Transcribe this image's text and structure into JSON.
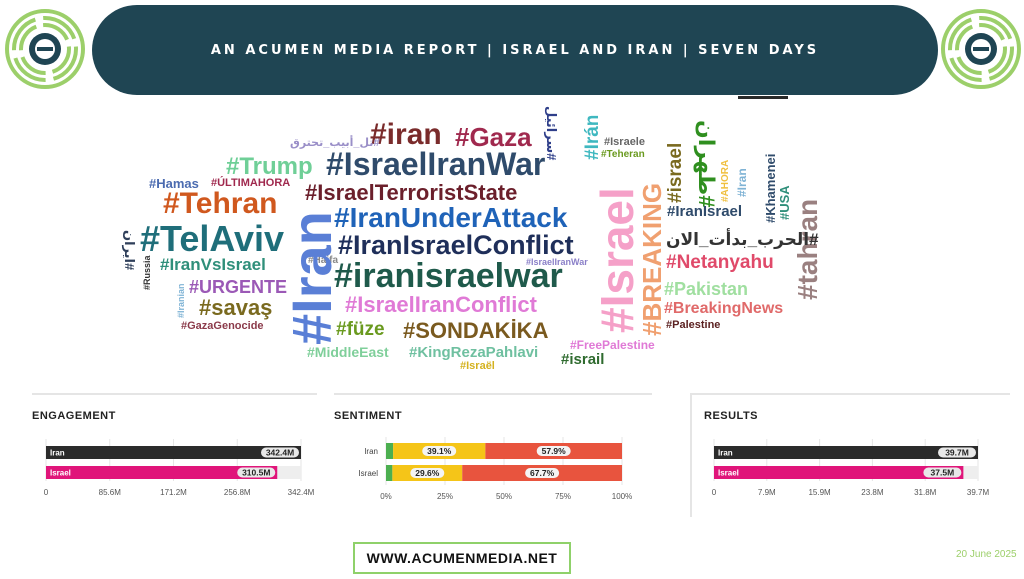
{
  "header": {
    "title": "AN ACUMEN MEDIA REPORT | ISRAEL AND IRAN | SEVEN DAYS",
    "logo_icon": "maze-logo-icon",
    "logo_color": "#9ccf6a"
  },
  "wordcloud": {
    "words": [
      "#iran",
      "#Gaza",
      "#IsraelIranWar",
      "#Trump",
      "تل_أبيب_تحترق#",
      "#Hamas",
      "#ÚLTIMAHORA",
      "#IsraelTerroristState",
      "#Tehran",
      "#IranUnderAttack",
      "#TelAviv",
      "#IranIsraelConflict",
      "ايران#",
      "#Russia",
      "#IranVsIsrael",
      "#Haifa",
      "#IsraelIranWar",
      "#iranisraelwar",
      "#Iranian",
      "#URGENTE",
      "#savaş",
      "#IsraelIranConflict",
      "#Iran",
      "#GazaGenocide",
      "#füze",
      "#SONDAKİKA",
      "#MiddleEast",
      "#KingRezaPahlavi",
      "#Israël",
      "#israil",
      "#FreePalestine",
      "#Israel",
      "#BREAKING",
      "سرائيل#",
      "#Irán",
      "#Israele",
      "#Teheran",
      "#israel",
      "طهران#",
      "#AHORA",
      "#Iran",
      "#Khamenei",
      "#USA",
      "#tahran",
      "#IranIsrael",
      "الحرب_بدأت_الان#",
      "#Netanyahu",
      "#Pakistan",
      "#BreakingNews",
      "#Palestine"
    ]
  },
  "engagement": {
    "title": "ENGAGEMENT",
    "rows": [
      {
        "label": "Iran",
        "value_label": "342.4M"
      },
      {
        "label": "Israel",
        "value_label": "310.5M"
      }
    ],
    "ticks": [
      "0",
      "85.6M",
      "171.2M",
      "256.8M",
      "342.4M"
    ]
  },
  "sentiment": {
    "title": "SENTIMENT",
    "rows": [
      {
        "label": "Iran",
        "pos_label": "39.1%",
        "neg_label": "57.9%"
      },
      {
        "label": "Israel",
        "pos_label": "29.6%",
        "neg_label": "67.7%"
      }
    ],
    "ticks": [
      "0%",
      "25%",
      "50%",
      "75%",
      "100%"
    ]
  },
  "results": {
    "title": "RESULTS",
    "rows": [
      {
        "label": "Iran",
        "value_label": "39.7M"
      },
      {
        "label": "Israel",
        "value_label": "37.5M"
      }
    ],
    "ticks": [
      "0",
      "7.9M",
      "15.9M",
      "23.8M",
      "31.8M",
      "39.7M"
    ]
  },
  "chart_data": [
    {
      "type": "bar",
      "title": "ENGAGEMENT",
      "categories": [
        "Iran",
        "Israel"
      ],
      "values": [
        342.4,
        310.5
      ],
      "xlim": [
        0,
        342.4
      ],
      "colors": {
        "Iran": "#2b2b2b",
        "Israel": "#e0157a"
      }
    },
    {
      "type": "bar",
      "title": "SENTIMENT",
      "categories": [
        "Iran",
        "Israel"
      ],
      "series": [
        {
          "values": [
            3.0,
            2.7
          ],
          "color": "#4caf50"
        },
        {
          "values": [
            39.1,
            29.6
          ],
          "color": "#f5c518"
        },
        {
          "values": [
            57.9,
            67.7
          ],
          "color": "#e8543e"
        }
      ],
      "xlim": [
        0,
        100
      ]
    },
    {
      "type": "bar",
      "title": "RESULTS",
      "categories": [
        "Iran",
        "Israel"
      ],
      "values": [
        39.7,
        37.5
      ],
      "xlim": [
        0,
        39.7
      ],
      "colors": {
        "Iran": "#2b2b2b",
        "Israel": "#e0157a"
      }
    }
  ],
  "footer": {
    "website": "WWW.ACUMENMEDIA.NET",
    "date": "20 June 2025"
  }
}
